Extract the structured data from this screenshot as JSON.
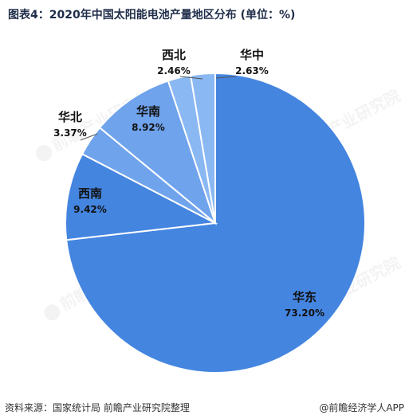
{
  "title": "图表4：2020年中国太阳能电池产量地区分布 (单位：%)",
  "source": "资料来源：国家统计局 前瞻产业研究院整理",
  "brand": "@前瞻经济学人APP",
  "watermark": "前瞻产业研究院",
  "colors": {
    "base": "#4485e0",
    "light": "#6fa3ec",
    "lighter": "#8ab8f2",
    "stroke": "#ffffff",
    "label": "#111111"
  },
  "chart_data": {
    "type": "pie",
    "start_angle_deg": 0,
    "direction": "clockwise",
    "slices": [
      {
        "label": "华东",
        "value": 73.2,
        "display": "73.20%"
      },
      {
        "label": "西南",
        "value": 9.42,
        "display": "9.42%"
      },
      {
        "label": "华北",
        "value": 3.37,
        "display": "3.37%"
      },
      {
        "label": "华南",
        "value": 8.92,
        "display": "8.92%"
      },
      {
        "label": "西北",
        "value": 2.46,
        "display": "2.46%"
      },
      {
        "label": "华中",
        "value": 2.63,
        "display": "2.63%"
      }
    ]
  }
}
